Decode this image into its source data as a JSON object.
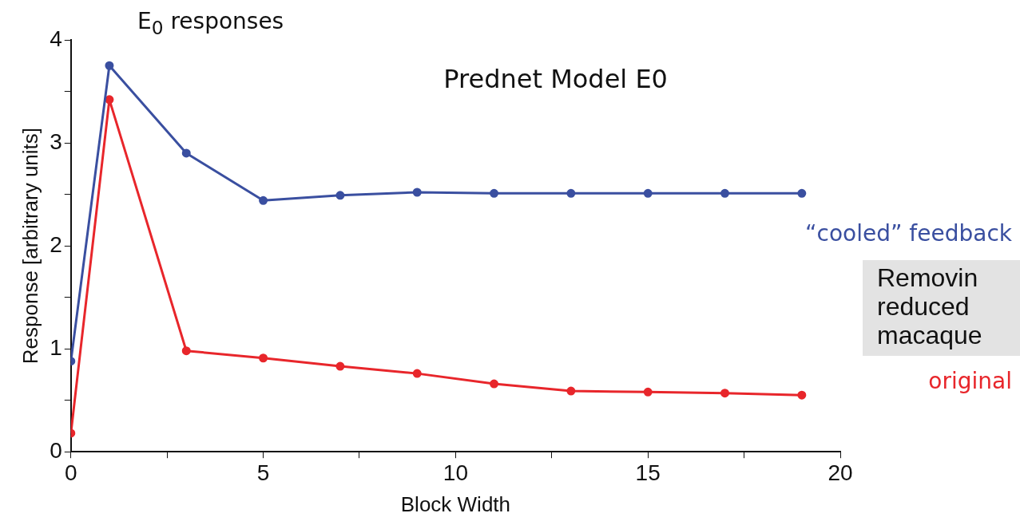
{
  "chart_data": {
    "type": "line",
    "title": "Prednet Model E0",
    "subtitle": "E$_{0}$ responses",
    "xlabel": "Block Width",
    "ylabel": "Response [arbitrary units]",
    "series": [
      {
        "name": "“cooled” feedback",
        "color": "#3a4fa0",
        "x": [
          0,
          1,
          3,
          5,
          7,
          9,
          11,
          13,
          15,
          17,
          19
        ],
        "values": [
          0.88,
          3.75,
          2.9,
          2.44,
          2.49,
          2.52,
          2.51,
          2.51,
          2.51,
          2.51,
          2.51
        ]
      },
      {
        "name": "original",
        "color": "#e8262b",
        "x": [
          0,
          1,
          3,
          5,
          7,
          9,
          11,
          13,
          15,
          17,
          19
        ],
        "values": [
          0.18,
          3.42,
          0.98,
          0.91,
          0.83,
          0.76,
          0.66,
          0.59,
          0.58,
          0.57,
          0.55
        ]
      }
    ],
    "xlim": [
      0,
      20
    ],
    "xticks": [
      0,
      {
        "value": 2.5,
        "label": null
      },
      5,
      {
        "value": 7.5,
        "label": null
      },
      10,
      {
        "value": 12.5,
        "label": null
      },
      15,
      {
        "value": 17.5,
        "label": null
      },
      20
    ],
    "ylim": [
      0,
      4
    ],
    "yticks": [
      0,
      {
        "value": 0.5,
        "label": null
      },
      1,
      {
        "value": 1.5,
        "label": null
      },
      2,
      {
        "value": 2.5,
        "label": null
      },
      3,
      {
        "value": 3.5,
        "label": null
      },
      4
    ],
    "grid": false,
    "legend": false,
    "marker": "circle",
    "line_style": "solid",
    "annotations": [
      "Removin\nreduced\nmacaque"
    ]
  }
}
